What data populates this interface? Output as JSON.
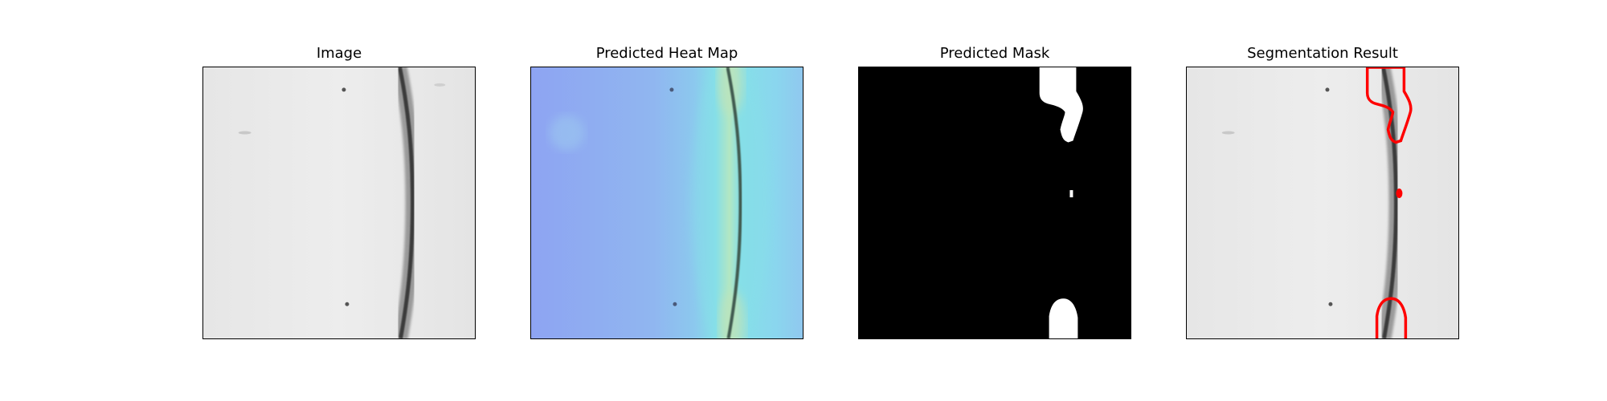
{
  "figure": {
    "panels": [
      {
        "id": "image",
        "title": "Image"
      },
      {
        "id": "heatmap",
        "title": "Predicted Heat Map"
      },
      {
        "id": "mask",
        "title": "Predicted Mask"
      },
      {
        "id": "segmentation",
        "title": "Segmentation Result"
      }
    ]
  },
  "colors": {
    "background": "#ececec",
    "crack": "#2a2a2a",
    "heat_low": "#8ea4f2",
    "heat_mid": "#86dfe8",
    "heat_high": "#e8e89a",
    "mask_background": "#000000",
    "mask_foreground": "#ffffff",
    "contour": "#ff0000"
  }
}
